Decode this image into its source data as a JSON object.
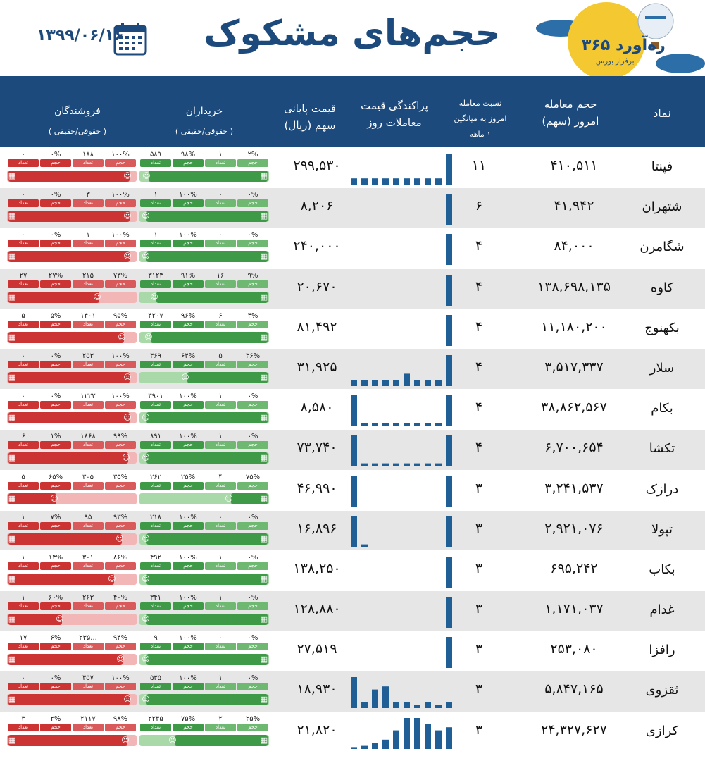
{
  "header": {
    "title": "حجم‌های مشکوک",
    "date": "۱۳۹۹/۰۶/۱۶",
    "logo_brand": "ره‌آورد ۳۶۵",
    "logo_sub": "برفراز بورس"
  },
  "columns": {
    "symbol": "نماد",
    "volume_1": "حجم معامله",
    "volume_2": "امروز (سهم)",
    "ratio_1": "نسبت معامله",
    "ratio_2": "امروز به میانگین",
    "ratio_3": "۱ ماهه",
    "dist_1": "پراکندگی قیمت",
    "dist_2": "معاملات روز",
    "price_1": "قیمت پایانی",
    "price_2": "سهم (ریال)",
    "buyers_1": "خریداران",
    "buyers_2": "( حقوقی/حقیقی )",
    "sellers_1": "فروشندگان",
    "sellers_2": "( حقوقی/حقیقی )"
  },
  "tag_labels": {
    "volume": "حجم",
    "count": "تعداد"
  },
  "colors": {
    "navy": "#1d4a7c",
    "buy": "#3e9a47",
    "buy_light": "#a9d9a9",
    "sell": "#cc3333",
    "sell_light": "#f2b6b6",
    "bars": "#1f5f96"
  },
  "rows": [
    {
      "symbol": "فپنتا",
      "volume": "۴۱۰,۵۱۱",
      "ratio": "۱۱",
      "price": "۲۹۹,۵۳۰",
      "buy": [
        "۲%",
        "۱",
        "۹۸%",
        "۵۸۹"
      ],
      "buy_ind": 0.98,
      "sell": [
        "۱۰۰%",
        "۱۸۸",
        "۰%",
        "۰"
      ],
      "sell_ind": 1.0,
      "hist": [
        1,
        1,
        1,
        1,
        1,
        1,
        1,
        1,
        1,
        5
      ]
    },
    {
      "symbol": "شتهران",
      "volume": "۴۱,۹۴۲",
      "ratio": "۶",
      "price": "۸,۲۰۶",
      "buy": [
        "۰%",
        "۰",
        "۱۰۰%",
        "۱"
      ],
      "buy_ind": 1.0,
      "sell": [
        "۱۰۰%",
        "۳",
        "۰%",
        "۰"
      ],
      "sell_ind": 1.0,
      "hist": [
        0,
        0,
        0,
        0,
        0,
        0,
        0,
        0,
        0,
        5
      ]
    },
    {
      "symbol": "شگامرن",
      "volume": "۸۴,۰۰۰",
      "ratio": "۴",
      "price": "۲۴۰,۰۰۰",
      "buy": [
        "۰%",
        "۰",
        "۱۰۰%",
        "۱"
      ],
      "buy_ind": 1.0,
      "sell": [
        "۱۰۰%",
        "۱",
        "۰%",
        "۰"
      ],
      "sell_ind": 1.0,
      "hist": [
        0,
        0,
        0,
        0,
        0,
        0,
        0,
        0,
        0,
        5
      ]
    },
    {
      "symbol": "کاوه",
      "volume": "۱۳۸,۶۹۸,۱۳۵",
      "ratio": "۴",
      "price": "۲۰,۶۷۰",
      "buy": [
        "۹%",
        "۱۶",
        "۹۱%",
        "۳۱۲۳"
      ],
      "buy_ind": 0.91,
      "sell": [
        "۷۳%",
        "۲۱۵",
        "۲۷%",
        "۲۷"
      ],
      "sell_ind": 0.73,
      "hist": [
        0,
        0,
        0,
        0,
        0,
        0,
        0,
        0,
        0,
        5
      ]
    },
    {
      "symbol": "بکهنوج",
      "volume": "۱۱,۱۸۰,۲۰۰",
      "ratio": "۴",
      "price": "۸۱,۴۹۲",
      "buy": [
        "۴%",
        "۶",
        "۹۶%",
        "۴۲۰۷"
      ],
      "buy_ind": 0.96,
      "sell": [
        "۹۵%",
        "۱۴۰۱",
        "۵%",
        "۵"
      ],
      "sell_ind": 0.95,
      "hist": [
        0,
        0,
        0,
        0,
        0,
        0,
        0,
        0,
        0,
        5
      ]
    },
    {
      "symbol": "سلار",
      "volume": "۳,۵۱۷,۳۳۷",
      "ratio": "۴",
      "price": "۳۱,۹۲۵",
      "buy": [
        "۳۶%",
        "۵",
        "۶۴%",
        "۳۶۹"
      ],
      "buy_ind": 0.64,
      "sell": [
        "۱۰۰%",
        "۲۵۳",
        "۰%",
        "۰"
      ],
      "sell_ind": 1.0,
      "hist": [
        1,
        1,
        1,
        1,
        1,
        2,
        1,
        1,
        1,
        5
      ]
    },
    {
      "symbol": "بکام",
      "volume": "۳۸,۸۶۲,۵۶۷",
      "ratio": "۴",
      "price": "۸,۵۸۰",
      "buy": [
        "۰%",
        "۱",
        "۱۰۰%",
        "۳۹۰۱"
      ],
      "buy_ind": 1.0,
      "sell": [
        "۱۰۰%",
        "۱۲۲۲",
        "۰%",
        "۰"
      ],
      "sell_ind": 1.0,
      "hist": [
        5,
        0.5,
        0.5,
        0.5,
        0.5,
        0.5,
        0.5,
        0.5,
        0.5,
        5
      ]
    },
    {
      "symbol": "تکشا",
      "volume": "۶,۷۰۰,۶۵۴",
      "ratio": "۴",
      "price": "۷۳,۷۴۰",
      "buy": [
        "۰%",
        "۱",
        "۱۰۰%",
        "۸۹۱"
      ],
      "buy_ind": 1.0,
      "sell": [
        "۹۹%",
        "۱۸۶۸",
        "۱%",
        "۶"
      ],
      "sell_ind": 0.99,
      "hist": [
        5,
        0.5,
        0.5,
        0.5,
        0.5,
        0.5,
        0.5,
        0.5,
        0.5,
        5
      ]
    },
    {
      "symbol": "درازک",
      "volume": "۳,۲۴۱,۵۳۷",
      "ratio": "۳",
      "price": "۴۶,۹۹۰",
      "buy": [
        "۷۵%",
        "۴",
        "۲۵%",
        "۲۶۲"
      ],
      "buy_ind": 0.25,
      "sell": [
        "۳۵%",
        "۳۰۵",
        "۶۵%",
        "۵"
      ],
      "sell_ind": 0.35,
      "hist": [
        5,
        0,
        0,
        0,
        0,
        0,
        0,
        0,
        0,
        5
      ]
    },
    {
      "symbol": "تپولا",
      "volume": "۲,۹۲۱,۰۷۶",
      "ratio": "۳",
      "price": "۱۶,۸۹۶",
      "buy": [
        "۰%",
        "۰",
        "۱۰۰%",
        "۲۱۸"
      ],
      "buy_ind": 1.0,
      "sell": [
        "۹۳%",
        "۹۵",
        "۷%",
        "۱"
      ],
      "sell_ind": 0.93,
      "hist": [
        5,
        0.5,
        0,
        0,
        0,
        0,
        0,
        0,
        0,
        5
      ]
    },
    {
      "symbol": "بکاب",
      "volume": "۶۹۵,۲۴۲",
      "ratio": "۳",
      "price": "۱۳۸,۲۵۰",
      "buy": [
        "۰%",
        "۱",
        "۱۰۰%",
        "۴۹۲"
      ],
      "buy_ind": 1.0,
      "sell": [
        "۸۶%",
        "۳۰۱",
        "۱۴%",
        "۱"
      ],
      "sell_ind": 0.86,
      "hist": [
        0,
        0,
        0,
        0,
        0,
        0,
        0,
        0,
        0,
        5
      ]
    },
    {
      "symbol": "غدام",
      "volume": "۱,۱۷۱,۰۳۷",
      "ratio": "۳",
      "price": "۱۲۸,۸۸۰",
      "buy": [
        "۰%",
        "۱",
        "۱۰۰%",
        "۳۴۱"
      ],
      "buy_ind": 1.0,
      "sell": [
        "۴۰%",
        "۲۶۳",
        "۶۰%",
        "۱"
      ],
      "sell_ind": 0.4,
      "hist": [
        0,
        0,
        0,
        0,
        0,
        0,
        0,
        0,
        0,
        5
      ]
    },
    {
      "symbol": "رافزا",
      "volume": "۲۵۳,۰۸۰",
      "ratio": "۳",
      "price": "۲۷,۵۱۹",
      "buy": [
        "۰%",
        "۰",
        "۱۰۰%",
        "۹"
      ],
      "buy_ind": 1.0,
      "sell": [
        "۹۴%",
        "۲۳۵...",
        "۶%",
        "۱۷"
      ],
      "sell_ind": 0.94,
      "hist": [
        0,
        0,
        0,
        0,
        0,
        0,
        0,
        0,
        0,
        5
      ]
    },
    {
      "symbol": "ثقزوی",
      "volume": "۵,۸۴۷,۱۶۵",
      "ratio": "۳",
      "price": "۱۸,۹۳۰",
      "buy": [
        "۰%",
        "۱",
        "۱۰۰%",
        "۵۳۵"
      ],
      "buy_ind": 1.0,
      "sell": [
        "۱۰۰%",
        "۴۵۷",
        "۰%",
        "۰"
      ],
      "sell_ind": 1.0,
      "hist": [
        5,
        1,
        3,
        3.5,
        1,
        1,
        0.5,
        1,
        0.5,
        1
      ]
    },
    {
      "symbol": "کرازی",
      "volume": "۲۴,۳۲۷,۶۲۷",
      "ratio": "۳",
      "price": "۲۱,۸۲۰",
      "buy": [
        "۲۵%",
        "۲",
        "۷۵%",
        "۲۲۴۵"
      ],
      "buy_ind": 0.75,
      "sell": [
        "۹۸%",
        "۲۱۱۷",
        "۲%",
        "۳"
      ],
      "sell_ind": 0.98,
      "hist": [
        0.3,
        0.5,
        1,
        1.5,
        3,
        5,
        5,
        4,
        3,
        3.5
      ]
    }
  ]
}
